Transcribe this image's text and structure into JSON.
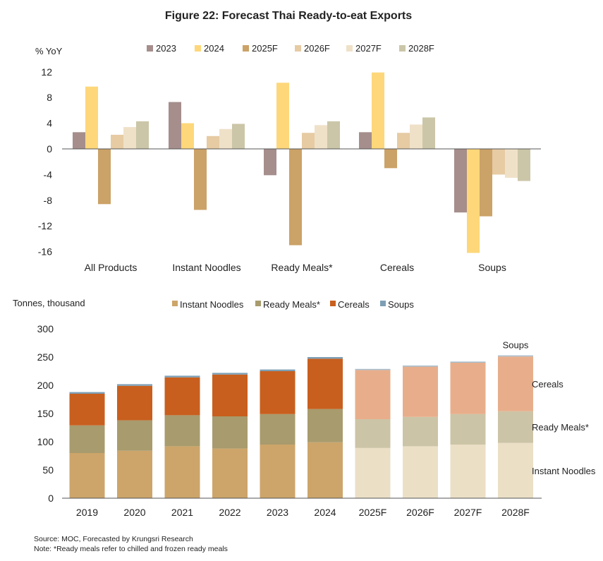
{
  "title": "Figure 22: Forecast Thai Ready-to-eat Exports",
  "footnote": {
    "source": "Source: MOC, Forecasted by Krungsri Research",
    "note": "Note: *Ready meals refer to chilled and frozen ready meals"
  },
  "colors": {
    "c2023": "#a58e8c",
    "c2024": "#fdd77a",
    "c2025F": "#cba267",
    "c2026F": "#e6cba3",
    "c2027F": "#efe1c8",
    "c2028F": "#cbc6a8",
    "noodlesActual": "#cda56a",
    "mealsActual": "#a89b6d",
    "cerealsActual": "#c85f1e",
    "soupsActual": "#7d9fb5",
    "noodlesForecast": "#ebdfc6",
    "mealsForecast": "#ccc4a6",
    "cerealsForecast": "#e8ae8b",
    "soupsForecast": "#a7bccb",
    "axis": "#555555"
  },
  "chart_data": [
    {
      "type": "bar",
      "title": "Figure 22: Forecast Thai Ready-to-eat Exports",
      "ylabel": "% YoY",
      "xlabel": "",
      "ylim": [
        -16,
        12
      ],
      "yticks": [
        12,
        8,
        4,
        0,
        -4,
        -8,
        -12,
        -16
      ],
      "grid": false,
      "legend_position": "top",
      "categories": [
        "All Products",
        "Instant Noodles",
        "Ready Meals*",
        "Cereals",
        "Soups"
      ],
      "series": [
        {
          "name": "2023",
          "values": [
            2.6,
            7.3,
            -4.1,
            2.6,
            -9.9
          ]
        },
        {
          "name": "2024",
          "values": [
            9.7,
            4.0,
            10.3,
            11.9,
            -16.2
          ]
        },
        {
          "name": "2025F",
          "values": [
            -8.6,
            -9.5,
            -15.0,
            -3.0,
            -10.5
          ]
        },
        {
          "name": "2026F",
          "values": [
            2.2,
            2.0,
            2.5,
            2.5,
            -4.0
          ]
        },
        {
          "name": "2027F",
          "values": [
            3.4,
            3.1,
            3.7,
            3.8,
            -4.5
          ]
        },
        {
          "name": "2028F",
          "values": [
            4.3,
            3.9,
            4.3,
            4.9,
            -5.0
          ]
        }
      ]
    },
    {
      "type": "bar",
      "stacked": true,
      "ylabel": "Tonnes, thousand",
      "xlabel": "",
      "ylim": [
        0,
        300
      ],
      "yticks": [
        300,
        250,
        200,
        150,
        100,
        50,
        0
      ],
      "grid": false,
      "legend_position": "top",
      "categories": [
        "2019",
        "2020",
        "2021",
        "2022",
        "2023",
        "2024",
        "2025F",
        "2026F",
        "2027F",
        "2028F"
      ],
      "forecast_from_index": 6,
      "series": [
        {
          "name": "Instant Noodles",
          "values": [
            80,
            84,
            92,
            88,
            95,
            99,
            89,
            92,
            95,
            98
          ]
        },
        {
          "name": "Ready Meals*",
          "values": [
            49,
            54,
            55,
            57,
            54,
            59,
            51,
            52,
            54,
            56
          ]
        },
        {
          "name": "Cereals",
          "values": [
            56,
            61,
            67,
            74,
            76,
            89,
            87,
            89,
            91,
            97
          ]
        },
        {
          "name": "Soups",
          "values": [
            3,
            3,
            3,
            3,
            3,
            3,
            2,
            2,
            2,
            2
          ]
        }
      ],
      "segment_labels": [
        "Instant Noodles",
        "Ready Meals*",
        "Cereals",
        "Soups"
      ]
    }
  ]
}
